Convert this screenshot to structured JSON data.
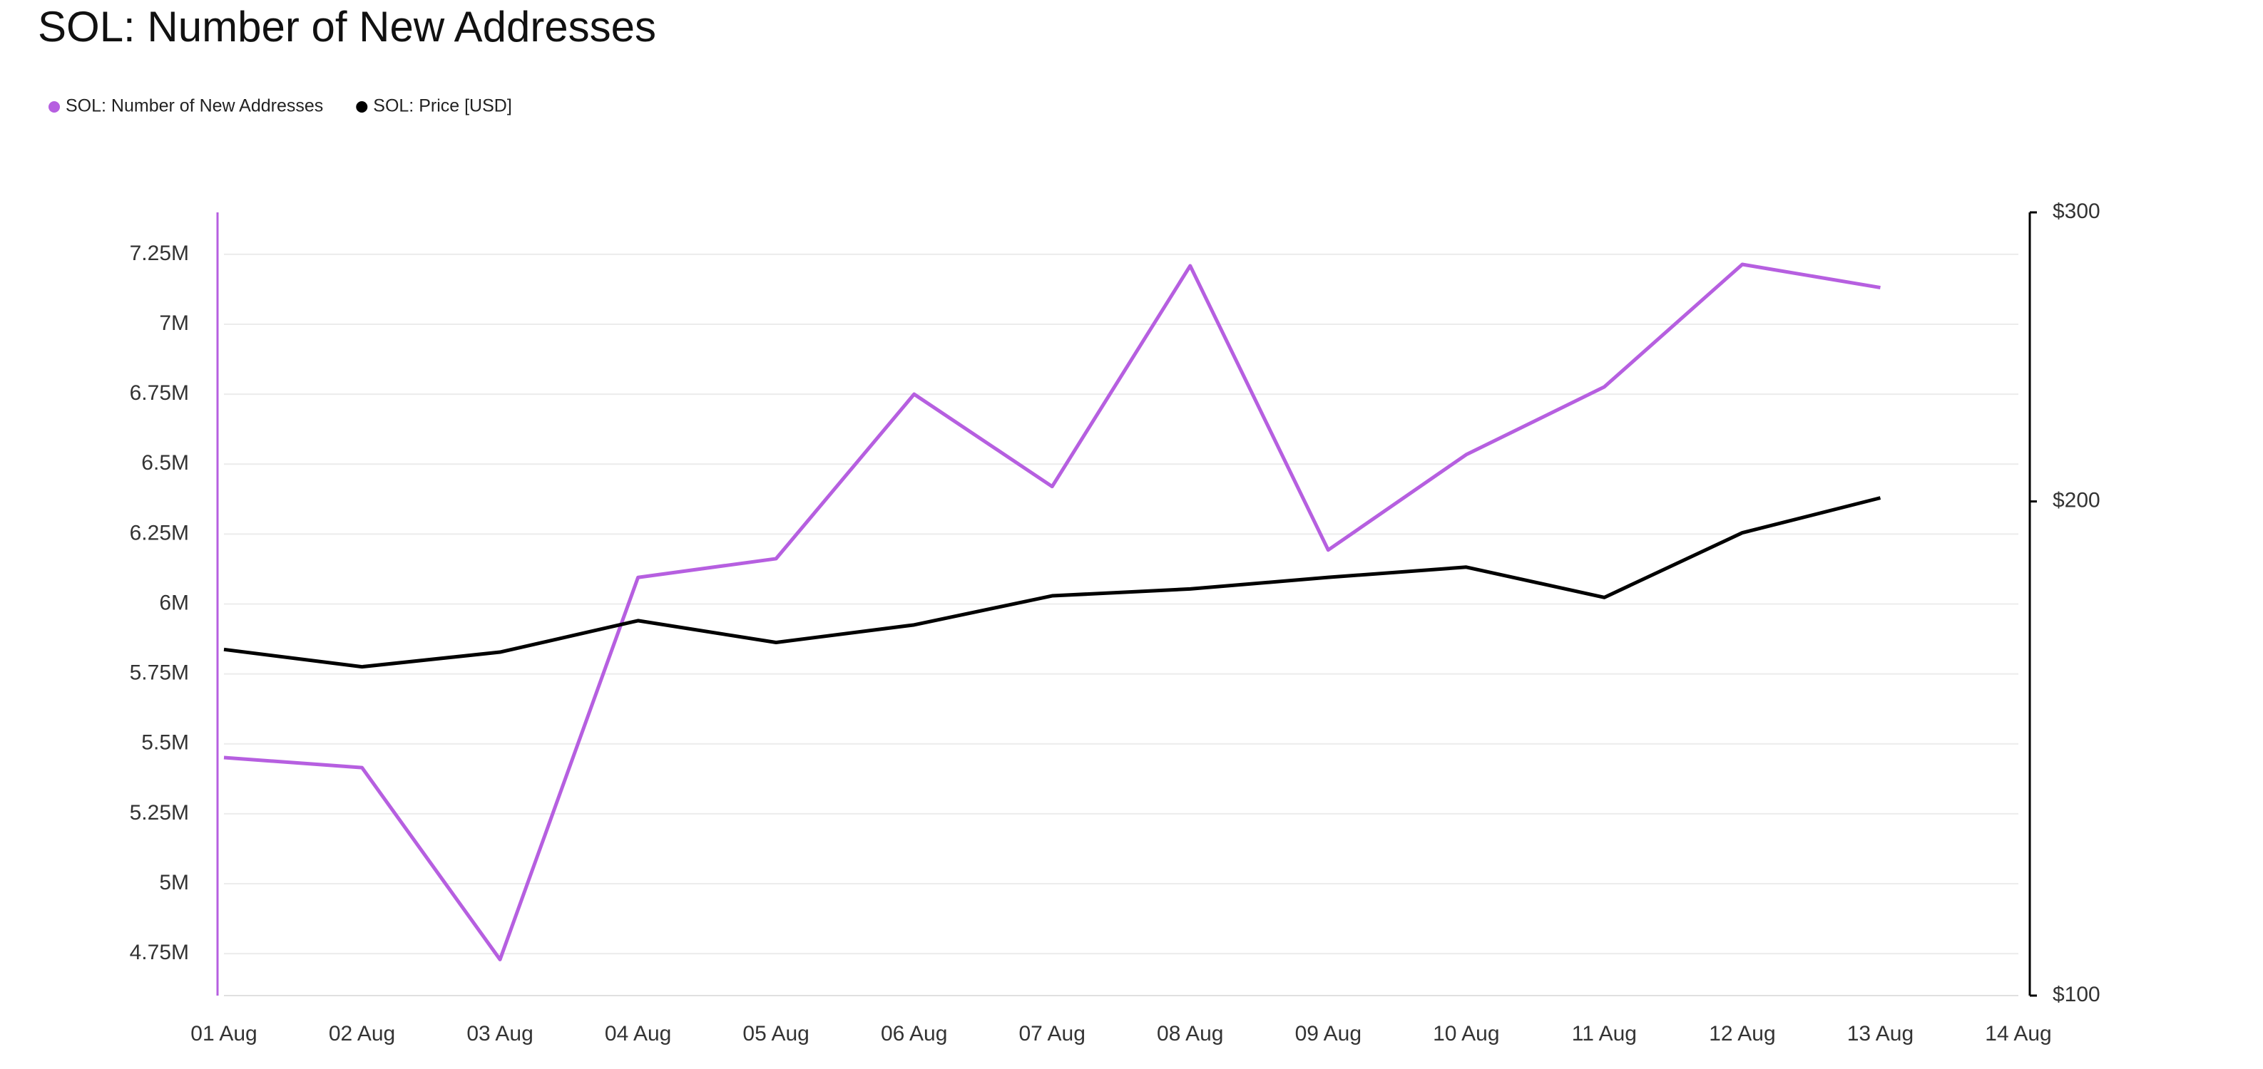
{
  "chart_data": {
    "type": "line",
    "title": "SOL: Number of New Addresses",
    "categories": [
      "01 Aug",
      "02 Aug",
      "03 Aug",
      "04 Aug",
      "05 Aug",
      "06 Aug",
      "07 Aug",
      "08 Aug",
      "09 Aug",
      "10 Aug",
      "11 Aug",
      "12 Aug",
      "13 Aug",
      "14 Aug"
    ],
    "series": [
      {
        "name": "SOL: Number of New Addresses",
        "color": "#b65fe0",
        "axis": "y",
        "values": [
          5451000,
          5415000,
          4729000,
          6095000,
          6162000,
          6750000,
          6420000,
          7209000,
          6193000,
          6534000,
          6776000,
          7214000,
          7131000,
          null
        ]
      },
      {
        "name": "SOL: Price [USD]",
        "color": "#000000",
        "axis": "y2",
        "values": [
          162.5,
          158.6,
          161.9,
          169.2,
          164.1,
          168.2,
          175.2,
          176.9,
          179.8,
          182.4,
          174.8,
          191.4,
          201.0,
          null
        ]
      }
    ],
    "ylim": [
      4600000,
      7400000
    ],
    "yticks": [
      {
        "value": 4750000,
        "label": "4.75M"
      },
      {
        "value": 5000000,
        "label": "5M"
      },
      {
        "value": 5250000,
        "label": "5.25M"
      },
      {
        "value": 5500000,
        "label": "5.5M"
      },
      {
        "value": 5750000,
        "label": "5.75M"
      },
      {
        "value": 6000000,
        "label": "6M"
      },
      {
        "value": 6250000,
        "label": "6.25M"
      },
      {
        "value": 6500000,
        "label": "6.5M"
      },
      {
        "value": 6750000,
        "label": "6.75M"
      },
      {
        "value": 7000000,
        "label": "7M"
      },
      {
        "value": 7250000,
        "label": "7.25M"
      }
    ],
    "y2lim": [
      100,
      300
    ],
    "y2ticks": [
      {
        "value": 100,
        "label": "$100"
      },
      {
        "value": 200,
        "label": "$200"
      },
      {
        "value": 300,
        "label": "$300"
      }
    ],
    "y2log": true,
    "grid": true
  }
}
